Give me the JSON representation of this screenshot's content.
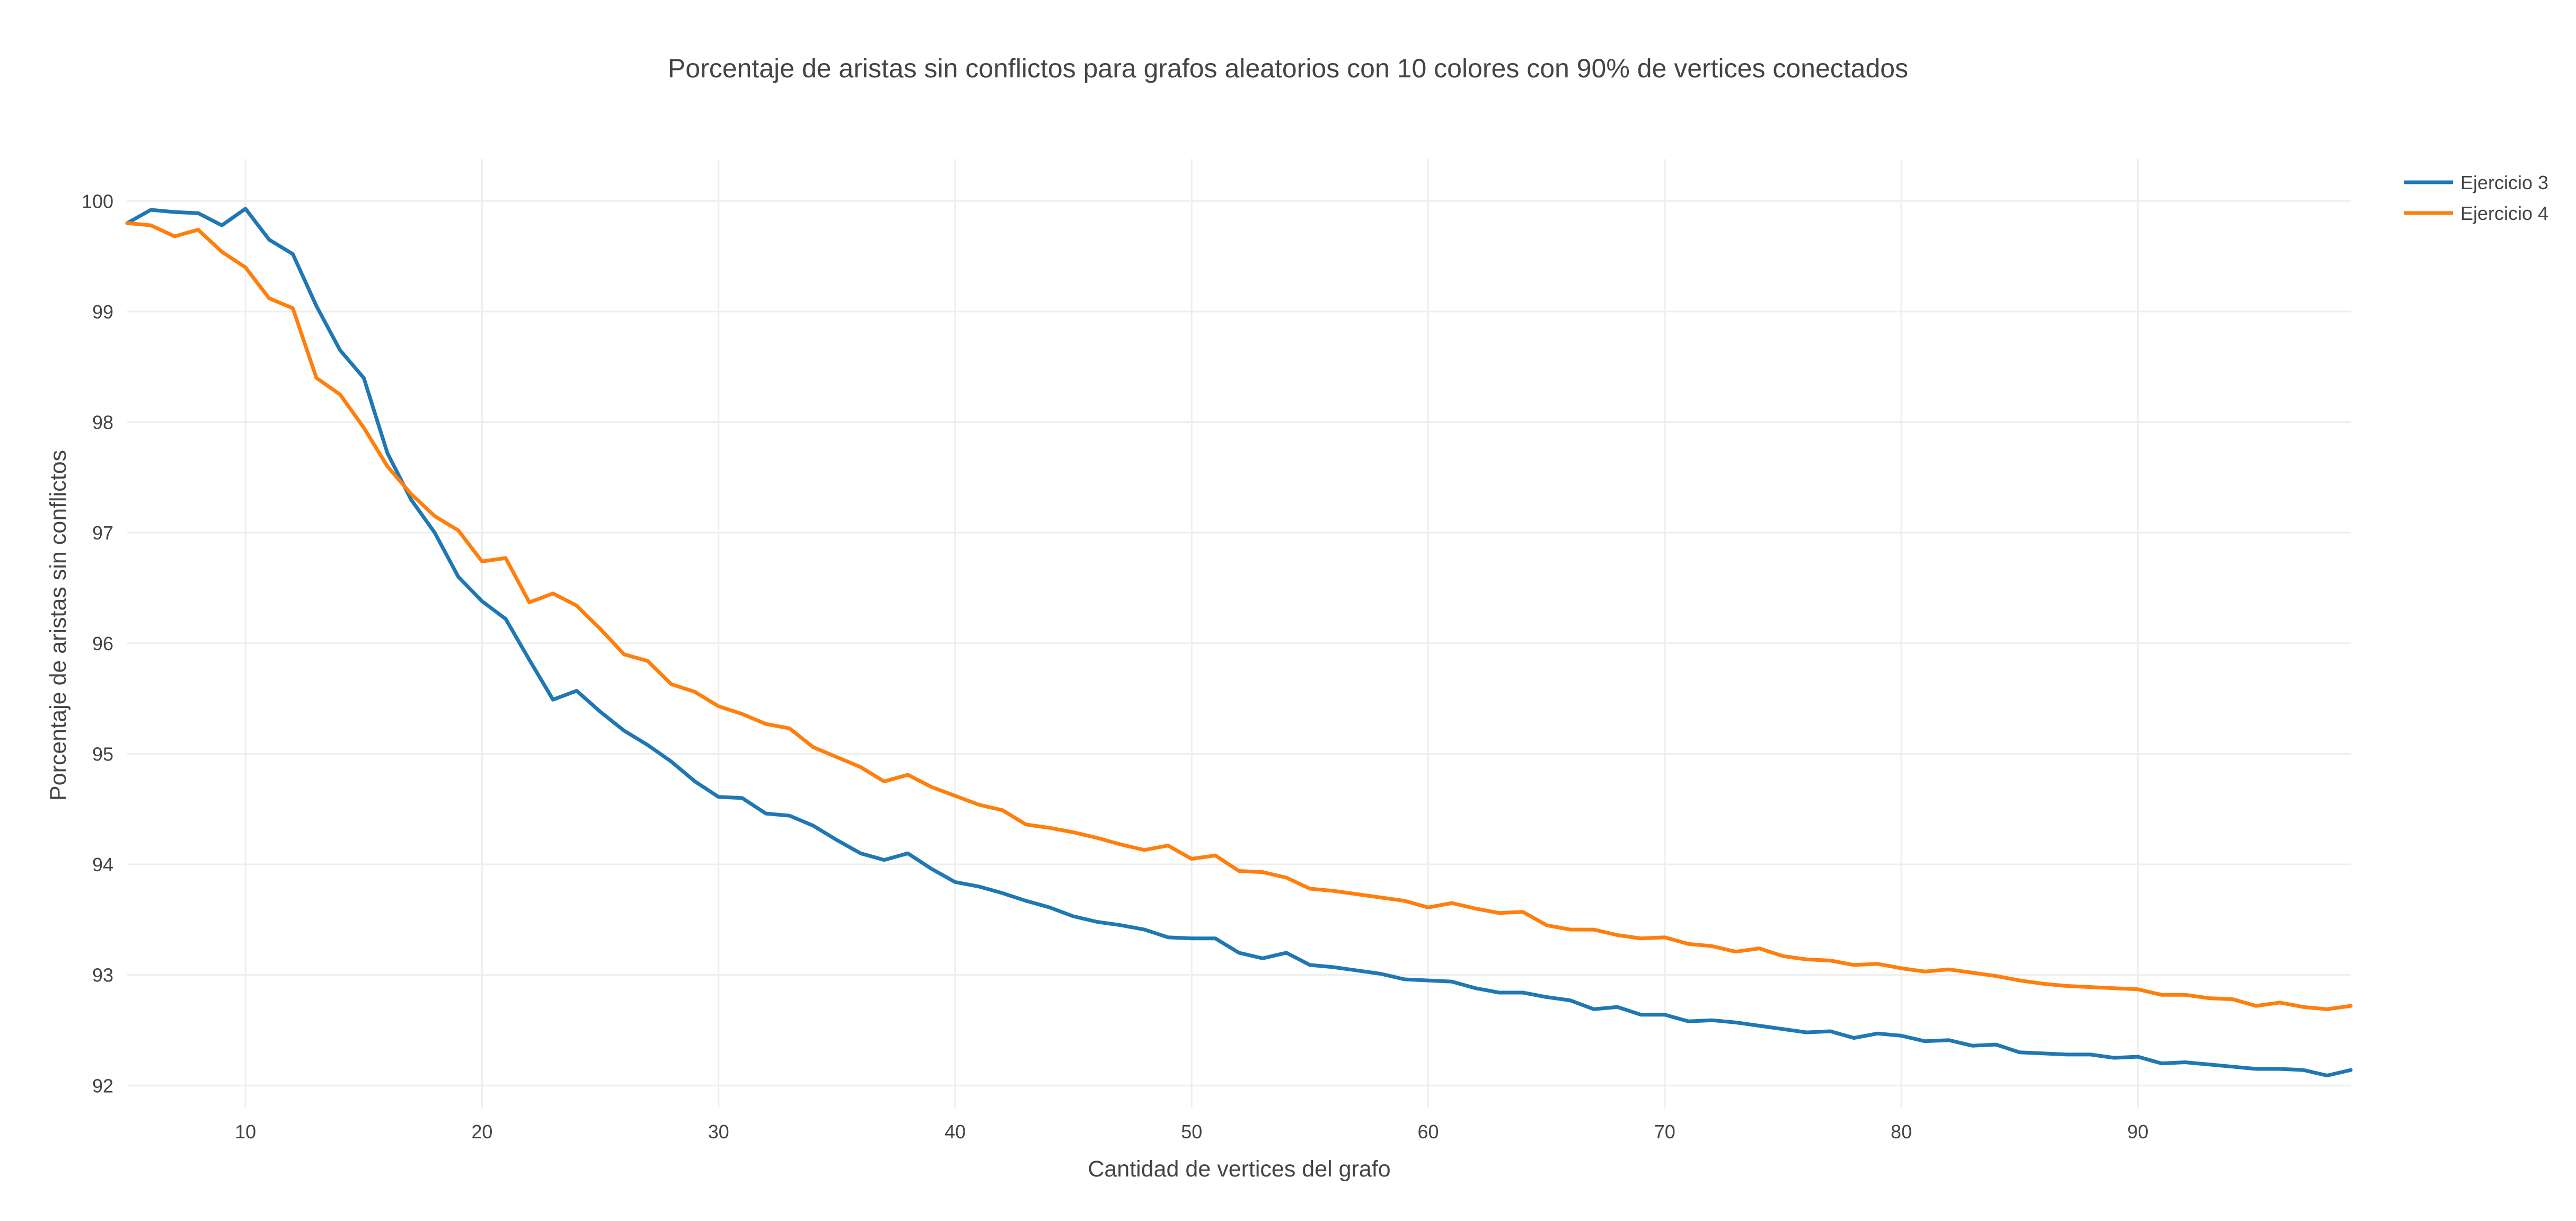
{
  "chart_data": {
    "type": "line",
    "title": "Porcentaje de aristas sin conflictos para grafos aleatorios con 10 colores con 90% de vertices conectados",
    "xlabel": "Cantidad de vertices del grafo",
    "ylabel": "Porcentaje de aristas sin conflictos",
    "xlim": [
      5,
      99
    ],
    "ylim": [
      91.8,
      100.38
    ],
    "xticks": [
      10,
      20,
      30,
      40,
      50,
      60,
      70,
      80,
      90
    ],
    "yticks": [
      92,
      93,
      94,
      95,
      96,
      97,
      98,
      99,
      100
    ],
    "grid": true,
    "legend_position": "top-right",
    "x": [
      5,
      6,
      7,
      8,
      9,
      10,
      11,
      12,
      13,
      14,
      15,
      16,
      17,
      18,
      19,
      20,
      21,
      22,
      23,
      24,
      25,
      26,
      27,
      28,
      29,
      30,
      31,
      32,
      33,
      34,
      35,
      36,
      37,
      38,
      39,
      40,
      41,
      42,
      43,
      44,
      45,
      46,
      47,
      48,
      49,
      50,
      51,
      52,
      53,
      54,
      55,
      56,
      57,
      58,
      59,
      60,
      61,
      62,
      63,
      64,
      65,
      66,
      67,
      68,
      69,
      70,
      71,
      72,
      73,
      74,
      75,
      76,
      77,
      78,
      79,
      80,
      81,
      82,
      83,
      84,
      85,
      86,
      87,
      88,
      89,
      90,
      91,
      92,
      93,
      94,
      95,
      96,
      97,
      98,
      99
    ],
    "series": [
      {
        "name": "Ejercicio 3",
        "color": "#1f77b4",
        "values": [
          99.8,
          99.92,
          99.9,
          99.89,
          99.78,
          99.93,
          99.65,
          99.52,
          99.05,
          98.65,
          98.4,
          97.72,
          97.3,
          97.0,
          96.6,
          96.38,
          96.22,
          95.85,
          95.49,
          95.57,
          95.38,
          95.21,
          95.08,
          94.93,
          94.75,
          94.61,
          94.6,
          94.46,
          94.44,
          94.35,
          94.22,
          94.1,
          94.04,
          94.1,
          93.96,
          93.84,
          93.8,
          93.74,
          93.67,
          93.61,
          93.53,
          93.48,
          93.45,
          93.41,
          93.34,
          93.33,
          93.33,
          93.2,
          93.15,
          93.2,
          93.09,
          93.07,
          93.04,
          93.01,
          92.96,
          92.95,
          92.94,
          92.88,
          92.84,
          92.84,
          92.8,
          92.77,
          92.69,
          92.71,
          92.64,
          92.64,
          92.58,
          92.59,
          92.57,
          92.54,
          92.51,
          92.48,
          92.49,
          92.43,
          92.47,
          92.45,
          92.4,
          92.41,
          92.36,
          92.37,
          92.3,
          92.29,
          92.28,
          92.28,
          92.25,
          92.26,
          92.2,
          92.21,
          92.19,
          92.17,
          92.15,
          92.15,
          92.14,
          92.09,
          92.14
        ]
      },
      {
        "name": "Ejercicio 4",
        "color": "#ff7f0e",
        "values": [
          99.8,
          99.78,
          99.68,
          99.74,
          99.54,
          99.4,
          99.12,
          99.03,
          98.4,
          98.25,
          97.95,
          97.6,
          97.35,
          97.15,
          97.02,
          96.74,
          96.77,
          96.37,
          96.45,
          96.34,
          96.13,
          95.9,
          95.84,
          95.63,
          95.56,
          95.43,
          95.36,
          95.27,
          95.23,
          95.06,
          94.97,
          94.88,
          94.75,
          94.81,
          94.7,
          94.62,
          94.54,
          94.49,
          94.36,
          94.33,
          94.29,
          94.24,
          94.18,
          94.13,
          94.17,
          94.05,
          94.08,
          93.94,
          93.93,
          93.88,
          93.78,
          93.76,
          93.73,
          93.7,
          93.67,
          93.61,
          93.65,
          93.6,
          93.56,
          93.57,
          93.45,
          93.41,
          93.41,
          93.36,
          93.33,
          93.34,
          93.28,
          93.26,
          93.21,
          93.24,
          93.17,
          93.14,
          93.13,
          93.09,
          93.1,
          93.06,
          93.03,
          93.05,
          93.02,
          92.99,
          92.95,
          92.92,
          92.9,
          92.89,
          92.88,
          92.87,
          92.82,
          92.82,
          92.79,
          92.78,
          92.72,
          92.75,
          92.71,
          92.69,
          92.72
        ]
      }
    ]
  }
}
